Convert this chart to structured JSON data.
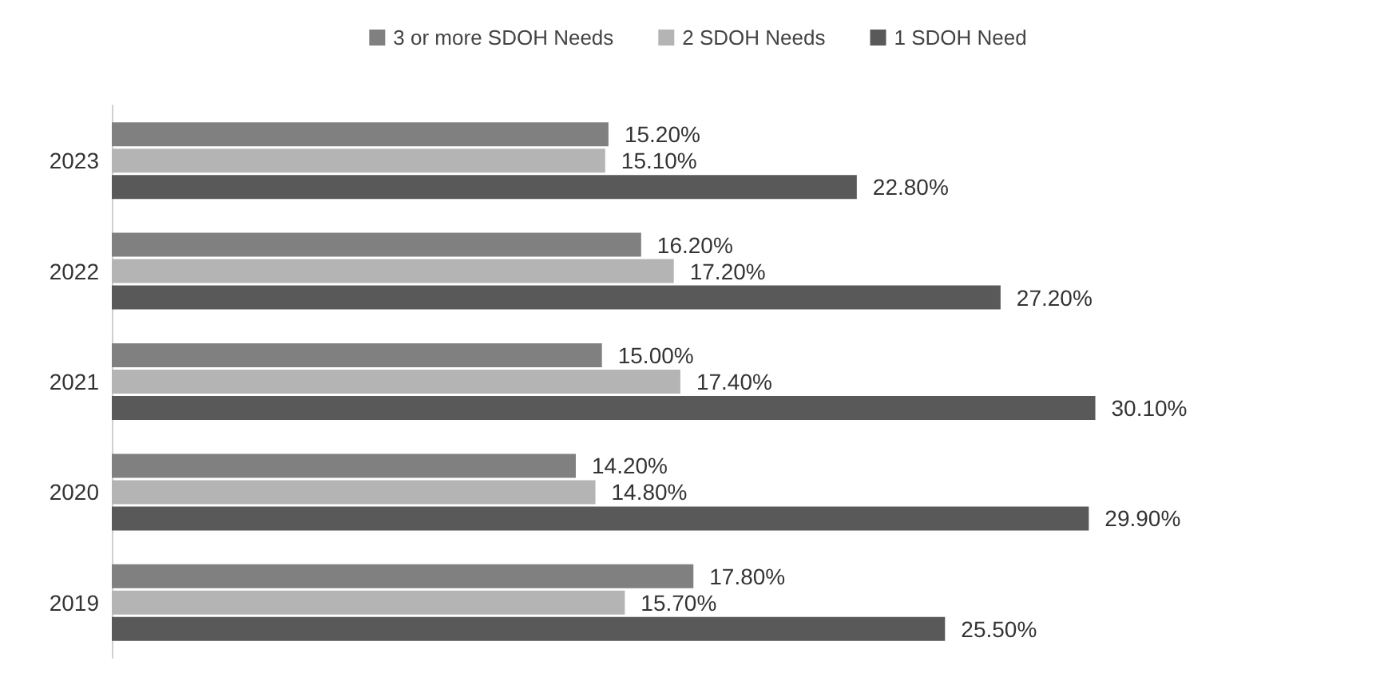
{
  "chart_data": {
    "type": "bar",
    "orientation": "horizontal",
    "categories": [
      "2023",
      "2022",
      "2021",
      "2020",
      "2019"
    ],
    "series": [
      {
        "name": "3 or more SDOH Needs",
        "color": "#808080",
        "values": [
          15.2,
          16.2,
          15.0,
          14.2,
          17.8
        ],
        "value_labels": [
          "15.20%",
          "16.20%",
          "15.00%",
          "14.20%",
          "17.80%"
        ]
      },
      {
        "name": "2 SDOH Needs",
        "color": "#b4b4b4",
        "values": [
          15.1,
          17.2,
          17.4,
          14.8,
          15.7
        ],
        "value_labels": [
          "15.10%",
          "17.20%",
          "17.40%",
          "14.80%",
          "15.70%"
        ]
      },
      {
        "name": "1 SDOH Need",
        "color": "#595959",
        "values": [
          22.8,
          27.2,
          30.1,
          29.9,
          25.5
        ],
        "value_labels": [
          "22.80%",
          "27.20%",
          "30.10%",
          "29.90%",
          "25.50%"
        ]
      }
    ],
    "legend": "top",
    "tick_labels": "y"
  }
}
